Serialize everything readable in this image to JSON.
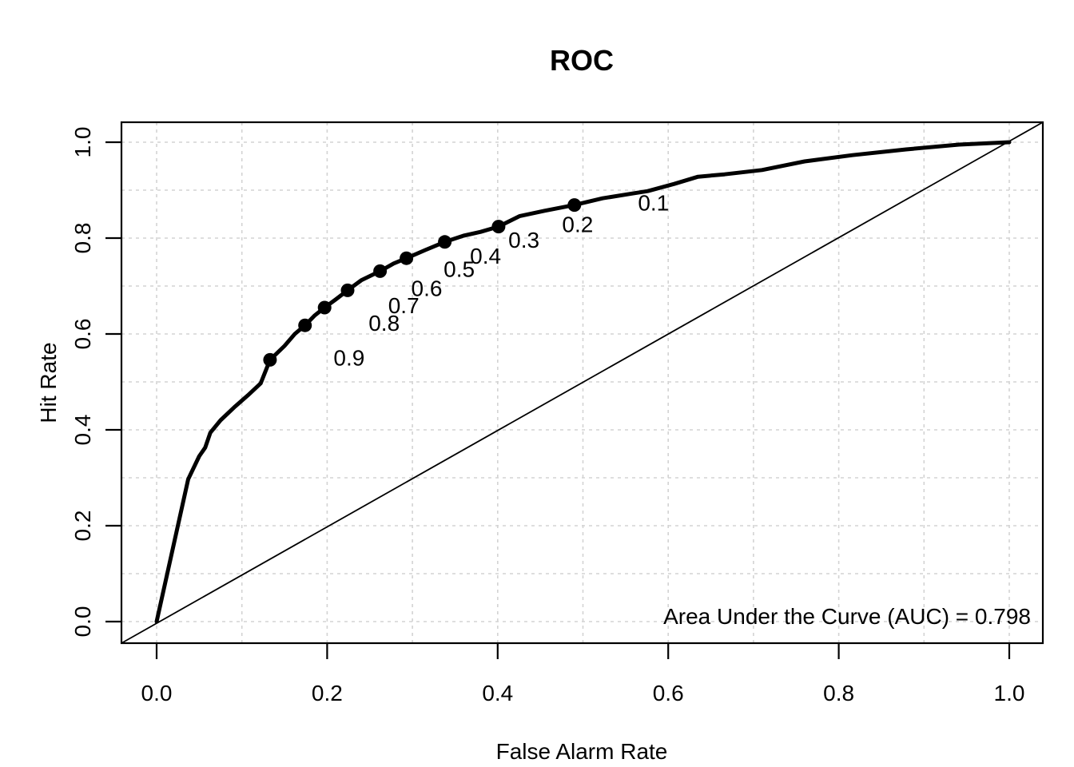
{
  "chart_data": {
    "type": "line",
    "title": "ROC",
    "xlabel": "False Alarm Rate",
    "ylabel": "Hit Rate",
    "annotation": "Area Under the Curve (AUC) = 0.798",
    "auc_value": 0.798,
    "xlim": [
      0.0,
      1.0
    ],
    "ylim": [
      0.0,
      1.0
    ],
    "grid": {
      "on": true,
      "step": 0.1,
      "color": "#D3D3D3",
      "style": "dotted"
    },
    "legend": "none",
    "x_ticks": {
      "values": [
        0.0,
        0.2,
        0.4,
        0.6,
        0.8,
        1.0
      ],
      "labels": [
        "0.0",
        "0.2",
        "0.4",
        "0.6",
        "0.8",
        "1.0"
      ]
    },
    "y_ticks": {
      "values": [
        0.0,
        0.2,
        0.4,
        0.6,
        0.8,
        1.0
      ],
      "labels": [
        "0.0",
        "0.2",
        "0.4",
        "0.6",
        "0.8",
        "1.0"
      ]
    },
    "diagonal_reference": {
      "from": [
        0.0,
        0.0
      ],
      "to": [
        1.0,
        1.0
      ]
    },
    "roc_curve": [
      [
        0.0,
        0.0
      ],
      [
        0.037,
        0.297
      ],
      [
        0.05,
        0.345
      ],
      [
        0.057,
        0.363
      ],
      [
        0.063,
        0.394
      ],
      [
        0.075,
        0.42
      ],
      [
        0.091,
        0.447
      ],
      [
        0.107,
        0.472
      ],
      [
        0.122,
        0.497
      ],
      [
        0.133,
        0.546
      ],
      [
        0.15,
        0.575
      ],
      [
        0.162,
        0.6
      ],
      [
        0.174,
        0.618
      ],
      [
        0.185,
        0.638
      ],
      [
        0.197,
        0.655
      ],
      [
        0.21,
        0.672
      ],
      [
        0.224,
        0.691
      ],
      [
        0.24,
        0.712
      ],
      [
        0.262,
        0.731
      ],
      [
        0.278,
        0.747
      ],
      [
        0.293,
        0.758
      ],
      [
        0.315,
        0.775
      ],
      [
        0.338,
        0.792
      ],
      [
        0.36,
        0.805
      ],
      [
        0.38,
        0.813
      ],
      [
        0.401,
        0.824
      ],
      [
        0.426,
        0.846
      ],
      [
        0.455,
        0.857
      ],
      [
        0.49,
        0.869
      ],
      [
        0.523,
        0.883
      ],
      [
        0.558,
        0.893
      ],
      [
        0.576,
        0.898
      ],
      [
        0.607,
        0.913
      ],
      [
        0.635,
        0.928
      ],
      [
        0.666,
        0.933
      ],
      [
        0.71,
        0.942
      ],
      [
        0.76,
        0.96
      ],
      [
        0.816,
        0.973
      ],
      [
        0.879,
        0.985
      ],
      [
        0.941,
        0.995
      ],
      [
        1.0,
        1.0
      ]
    ],
    "threshold_points": [
      {
        "label": "0.1",
        "false_alarm_rate": 0.49,
        "hit_rate": 0.869
      },
      {
        "label": "0.2",
        "false_alarm_rate": 0.401,
        "hit_rate": 0.824
      },
      {
        "label": "0.3",
        "false_alarm_rate": 0.338,
        "hit_rate": 0.792
      },
      {
        "label": "0.4",
        "false_alarm_rate": 0.293,
        "hit_rate": 0.758
      },
      {
        "label": "0.5",
        "false_alarm_rate": 0.262,
        "hit_rate": 0.731
      },
      {
        "label": "0.6",
        "false_alarm_rate": 0.224,
        "hit_rate": 0.691
      },
      {
        "label": "0.7",
        "false_alarm_rate": 0.197,
        "hit_rate": 0.655
      },
      {
        "label": "0.8",
        "false_alarm_rate": 0.174,
        "hit_rate": 0.618
      },
      {
        "label": "0.9",
        "false_alarm_rate": 0.133,
        "hit_rate": 0.546
      }
    ],
    "colors": {
      "curve": "#000000",
      "diagonal": "#000000",
      "grid": "#D3D3D3",
      "text": "#000000",
      "background": "#FFFFFF"
    }
  }
}
